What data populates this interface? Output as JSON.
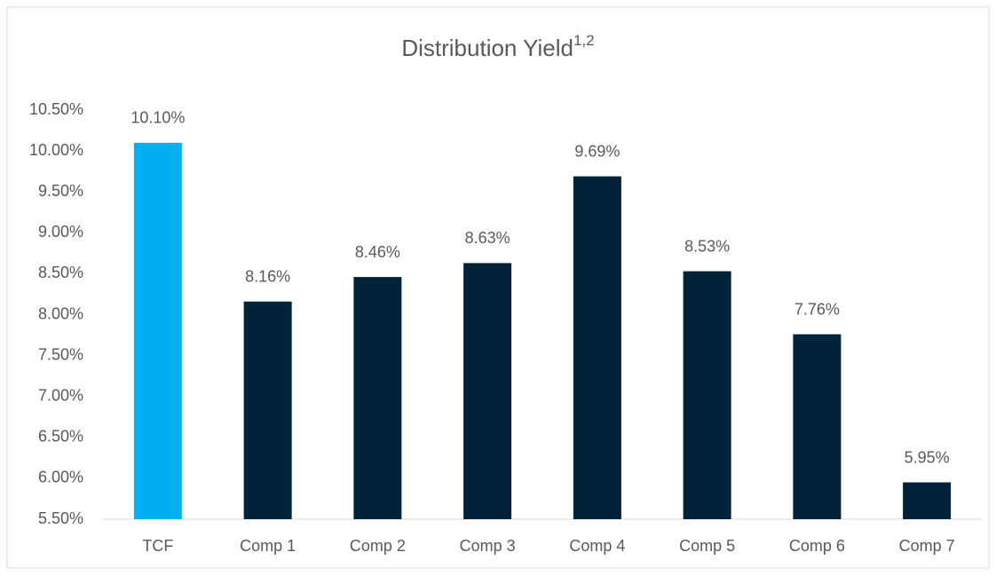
{
  "chart_data": {
    "type": "bar",
    "title": "Distribution Yield",
    "title_superscript": "1,2",
    "categories": [
      "TCF",
      "Comp 1",
      "Comp 2",
      "Comp 3",
      "Comp 4",
      "Comp 5",
      "Comp 6",
      "Comp 7"
    ],
    "values": [
      10.1,
      8.16,
      8.46,
      8.63,
      9.69,
      8.53,
      7.76,
      5.95
    ],
    "value_labels": [
      "10.10%",
      "8.16%",
      "8.46%",
      "8.63%",
      "9.69%",
      "8.53%",
      "7.76%",
      "5.95%"
    ],
    "colors": [
      "#00b0f0",
      "#002339",
      "#002339",
      "#002339",
      "#002339",
      "#002339",
      "#002339",
      "#002339"
    ],
    "ylim": [
      5.5,
      10.5
    ],
    "yticks": [
      {
        "value": 5.5,
        "label": "5.50%"
      },
      {
        "value": 6,
        "label": "6.00%"
      },
      {
        "value": 6.5,
        "label": "6.50%"
      },
      {
        "value": 7,
        "label": "7.00%"
      },
      {
        "value": 7.5,
        "label": "7.50%"
      },
      {
        "value": 8,
        "label": "8.00%"
      },
      {
        "value": 8.5,
        "label": "8.50%"
      },
      {
        "value": 9,
        "label": "9.00%"
      },
      {
        "value": 9.5,
        "label": "9.50%"
      },
      {
        "value": 10,
        "label": "10.00%"
      },
      {
        "value": 10.5,
        "label": "10.50%"
      }
    ],
    "grid": false
  }
}
